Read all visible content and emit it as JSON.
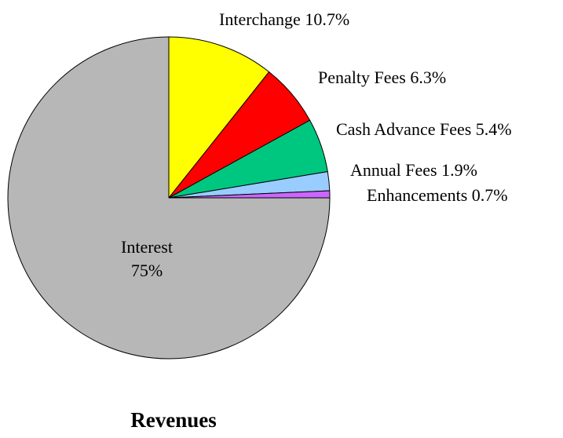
{
  "chart_data": {
    "type": "pie",
    "title": "Revenues",
    "slices": [
      {
        "name": "Interchange",
        "value_label": "10.7%",
        "value": 10.7,
        "color": "#ffff00"
      },
      {
        "name": "Penalty Fees",
        "value_label": "6.3%",
        "value": 6.3,
        "color": "#ff0000"
      },
      {
        "name": "Cash Advance Fees",
        "value_label": "5.4%",
        "value": 5.4,
        "color": "#00c77f"
      },
      {
        "name": "Annual Fees",
        "value_label": "1.9%",
        "value": 1.9,
        "color": "#99ccff"
      },
      {
        "name": "Enhancements",
        "value_label": "0.7%",
        "value": 0.7,
        "color": "#cc66ff"
      },
      {
        "name": "Interest",
        "value_label": "75%",
        "value": 75,
        "color": "#b7b7b7"
      }
    ],
    "start": "12 o'clock",
    "direction": "clockwise"
  }
}
